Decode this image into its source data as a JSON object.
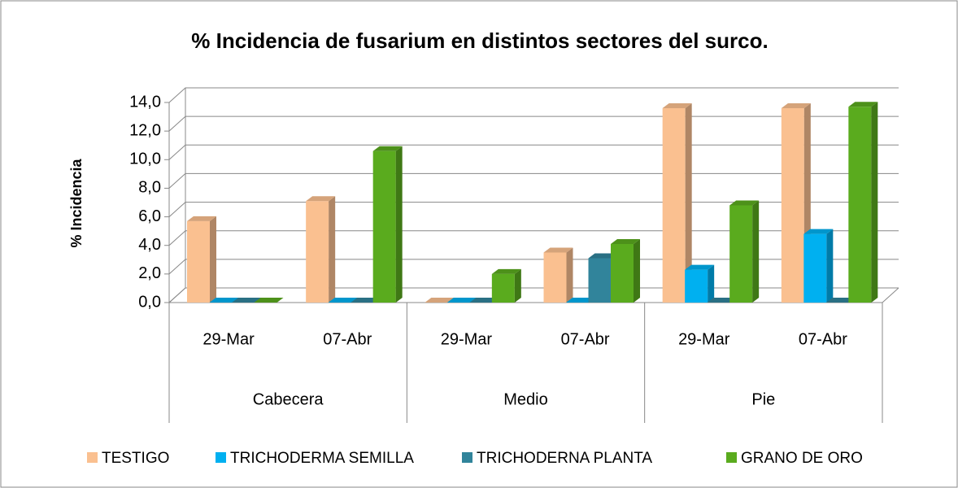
{
  "chart_data": {
    "type": "bar3d",
    "title": "% Incidencia de fusarium en distintos sectores del surco.",
    "y_label": "% Incidencia",
    "categories": [
      "29-Mar",
      "07-Abr",
      "29-Mar",
      "07-Abr",
      "29-Mar",
      "07-Abr"
    ],
    "groups": [
      "Cabecera",
      "Medio",
      "Pie"
    ],
    "series": [
      {
        "name": "TESTIGO",
        "color": "#fac090",
        "values": [
          5.7,
          7.1,
          0,
          3.5,
          13.6,
          13.6
        ]
      },
      {
        "name": "TRICHODERMA SEMILLA",
        "color": "#00b0f0",
        "values": [
          0,
          0,
          0,
          0,
          2.3,
          4.8
        ]
      },
      {
        "name": "TRICHODERNA PLANTA",
        "color": "#31849b",
        "values": [
          0,
          0,
          0,
          3.1,
          0,
          0
        ]
      },
      {
        "name": "GRANO DE ORO",
        "color": "#5aab1e",
        "values": [
          0,
          10.6,
          2.0,
          4.1,
          6.8,
          13.7
        ]
      }
    ],
    "ylim": [
      0,
      14
    ],
    "yticks": [
      {
        "value": 0,
        "label": "0,0"
      },
      {
        "value": 2,
        "label": "2,0"
      },
      {
        "value": 4,
        "label": "4,0"
      },
      {
        "value": 6,
        "label": "6,0"
      },
      {
        "value": 8,
        "label": "8,0"
      },
      {
        "value": 10,
        "label": "10,0"
      },
      {
        "value": 12,
        "label": "12,0"
      },
      {
        "value": 14,
        "label": "14,0"
      }
    ],
    "grid": true,
    "legend": "bottom"
  }
}
